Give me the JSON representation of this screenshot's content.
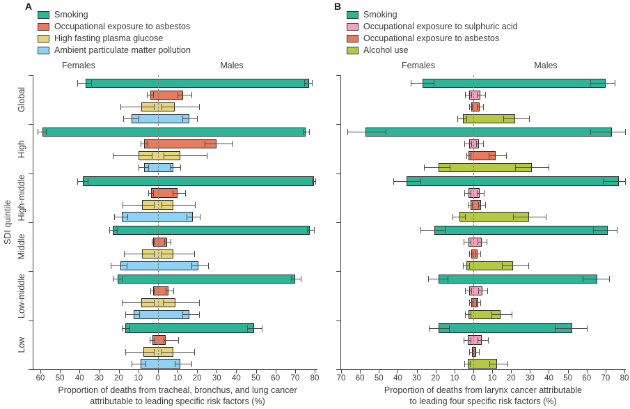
{
  "figure": {
    "background": "#ffffff",
    "y_axis_title": "SDI quintile"
  },
  "chart_data": [
    {
      "panel": "A",
      "type": "bar",
      "orientation": "horizontal-diverging-with-error-bars",
      "left_label": "Females",
      "right_label": "Males",
      "ylabel": "SDI quintile",
      "xlabel": "Proportion of deaths from tracheal, bronchus, and lung cancer attributable to leading specific risk factors (%)",
      "xlabel_lines": [
        "Proportion of deaths from tracheal, bronchus, and lung cancer",
        "attributable to leading specific risk factors (%)"
      ],
      "axis": {
        "female_max": 60,
        "male_max": 80,
        "tick_step": 10,
        "zero_line": "dashed"
      },
      "x_tick_labels": [
        "60",
        "50",
        "40",
        "30",
        "20",
        "10",
        "0",
        "10",
        "20",
        "30",
        "40",
        "50",
        "60",
        "70",
        "80"
      ],
      "categories": [
        "Global",
        "High",
        "High-middle",
        "Middle",
        "Low-middle",
        "Low"
      ],
      "series": [
        {
          "name": "Smoking",
          "color": "#2eb496",
          "female": [
            [
              37,
              34,
              41
            ],
            [
              59,
              57,
              61.5
            ],
            [
              38.5,
              36,
              41
            ],
            [
              23,
              21,
              25
            ],
            [
              20.5,
              18.5,
              23
            ],
            [
              16.5,
              14.5,
              18.5
            ]
          ],
          "male": [
            [
              77,
              74.5,
              78.5
            ],
            [
              75.5,
              74,
              77
            ],
            [
              79.5,
              78.5,
              80.5
            ],
            [
              77.5,
              76,
              79.5
            ],
            [
              70,
              68,
              73
            ],
            [
              49,
              45.5,
              53
            ]
          ]
        },
        {
          "name": "Occupational exposure to asbestos",
          "color": "#e87a5e",
          "female": [
            [
              4,
              2.5,
              5.5
            ],
            [
              7,
              5.5,
              9
            ],
            [
              3.5,
              2.5,
              5
            ],
            [
              2.5,
              1.8,
              3.3
            ],
            [
              2.5,
              1.7,
              4
            ],
            [
              2.8,
              1.8,
              4.3
            ]
          ],
          "male": [
            [
              13,
              10,
              17
            ],
            [
              30,
              24,
              38
            ],
            [
              10,
              7.5,
              14
            ],
            [
              4.5,
              3.3,
              6.5
            ],
            [
              5.5,
              4,
              8
            ],
            [
              4,
              2.8,
              10.5
            ]
          ]
        },
        {
          "name": "High fasting plasma glucose",
          "color": "#e5d57d",
          "female": [
            [
              8.5,
              2,
              19
            ],
            [
              10,
              3,
              23
            ],
            [
              8,
              2,
              18
            ],
            [
              8,
              2,
              17.5
            ],
            [
              8.5,
              2,
              18.5
            ],
            [
              7.5,
              2,
              16.5
            ]
          ],
          "male": [
            [
              8.5,
              2,
              21
            ],
            [
              11.5,
              3,
              25
            ],
            [
              8,
              2,
              19
            ],
            [
              8,
              2,
              18.5
            ],
            [
              9,
              2.5,
              21
            ],
            [
              8,
              2,
              18.5
            ]
          ]
        },
        {
          "name": "Ambient particulate matter pollution",
          "color": "#90d2f4",
          "female": [
            [
              13.5,
              10,
              17.8
            ],
            [
              7,
              5,
              10
            ],
            [
              18.5,
              15.5,
              22.5
            ],
            [
              19,
              16,
              24
            ],
            [
              12.5,
              9.5,
              16.5
            ],
            [
              9,
              6.5,
              13.5
            ]
          ],
          "male": [
            [
              16,
              12.5,
              20
            ],
            [
              8,
              6,
              11.5
            ],
            [
              17.8,
              14.5,
              21.5
            ],
            [
              20.5,
              17,
              25.5
            ],
            [
              16,
              12.5,
              21
            ],
            [
              11.5,
              8.5,
              17
            ]
          ]
        }
      ]
    },
    {
      "panel": "B",
      "type": "bar",
      "orientation": "horizontal-diverging-with-error-bars",
      "left_label": "Females",
      "right_label": "Males",
      "xlabel": "Proportion of deaths from larynx cancer attributable to leading four specific risk factors (%)",
      "xlabel_lines": [
        "Proportion of deaths from larynx cancer attributable",
        "to leading four specific risk factors (%)"
      ],
      "axis": {
        "female_max": 70,
        "male_max": 80,
        "tick_step": 10,
        "zero_line": "dashed"
      },
      "x_tick_labels": [
        "70",
        "60",
        "50",
        "40",
        "30",
        "20",
        "10",
        "0",
        "10",
        "20",
        "30",
        "40",
        "50",
        "60",
        "70",
        "80"
      ],
      "categories": [
        "Global",
        "High",
        "High-middle",
        "Middle",
        "Low-middle",
        "Low"
      ],
      "series": [
        {
          "name": "Smoking",
          "color": "#2eb496",
          "female": [
            [
              27,
              21,
              33
            ],
            [
              57,
              46.5,
              66.5
            ],
            [
              35.5,
              28,
              42.5
            ],
            [
              20.5,
              15,
              28
            ],
            [
              18.5,
              13.5,
              24
            ],
            [
              18.5,
              13,
              23.5
            ]
          ],
          "male": [
            [
              70,
              62,
              75
            ],
            [
              73.5,
              62,
              80.5
            ],
            [
              77,
              68.5,
              80.5
            ],
            [
              71,
              63.5,
              76
            ],
            [
              65.5,
              58,
              72
            ],
            [
              52.5,
              43,
              60
            ]
          ]
        },
        {
          "name": "Occupational exposure to sulphuric acid",
          "color": "#f2a3bd",
          "female": [
            [
              2.2,
              1.2,
              4.4
            ],
            [
              2.2,
              1,
              4.8
            ],
            [
              2.6,
              1.3,
              4.8
            ],
            [
              2.6,
              1.3,
              5.2
            ],
            [
              2.2,
              1.1,
              4.4
            ],
            [
              3,
              1.5,
              5.2
            ]
          ],
          "male": [
            [
              3.7,
              2,
              6.3
            ],
            [
              2.9,
              1.5,
              5.2
            ],
            [
              3.3,
              1.7,
              5.5
            ],
            [
              4.4,
              2.3,
              7
            ],
            [
              4.8,
              2.5,
              7.4
            ],
            [
              4.4,
              2.2,
              7.7
            ]
          ]
        },
        {
          "name": "Occupational exposure to asbestos",
          "color": "#e87a5e",
          "female": [
            [
              1.1,
              0.6,
              2.2
            ],
            [
              2.6,
              1.5,
              3.7
            ],
            [
              1.5,
              0.8,
              3
            ],
            [
              1.1,
              0.5,
              2.2
            ],
            [
              1.1,
              0.5,
              2.2
            ],
            [
              0.7,
              0.3,
              2.2
            ]
          ],
          "male": [
            [
              3.3,
              2,
              5.2
            ],
            [
              11.8,
              8,
              17.3
            ],
            [
              4.1,
              2.5,
              6.3
            ],
            [
              2.2,
              1.3,
              3.7
            ],
            [
              2.6,
              1.5,
              3.7
            ],
            [
              1.5,
              0.8,
              3
            ]
          ]
        },
        {
          "name": "Alcohol use",
          "color": "#b6c944",
          "female": [
            [
              5.5,
              3.5,
              8.5
            ],
            [
              18.5,
              12.5,
              26
            ],
            [
              7.4,
              4.5,
              11
            ],
            [
              3.7,
              2.2,
              5.5
            ],
            [
              2.6,
              1.5,
              4.4
            ],
            [
              3,
              1.8,
              4.8
            ]
          ],
          "male": [
            [
              22,
              16,
              29.5
            ],
            [
              31,
              22,
              40
            ],
            [
              29.5,
              21,
              38.5
            ],
            [
              21,
              15,
              29
            ],
            [
              14.4,
              9.5,
              20.3
            ],
            [
              12.5,
              8.5,
              18
            ]
          ]
        }
      ]
    }
  ]
}
